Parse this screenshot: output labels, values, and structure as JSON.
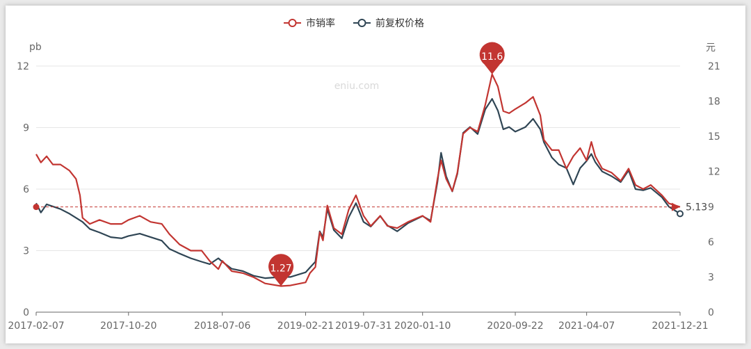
{
  "chart_data": {
    "type": "line",
    "legend": [
      {
        "name": "市销率",
        "color": "#c23531"
      },
      {
        "name": "前复权价格",
        "color": "#2f4554"
      }
    ],
    "legend_position": "top-center",
    "watermark": "eniu.com",
    "y_left": {
      "unit": "pb",
      "min": 0,
      "max": 12,
      "ticks": [
        0,
        3,
        6,
        9,
        12
      ]
    },
    "y_right": {
      "unit": "元",
      "min": 0,
      "max": 21,
      "ticks": [
        0,
        3,
        6,
        9,
        12,
        15,
        18,
        21
      ]
    },
    "x_ticks": [
      "2017-02-07",
      "2017-10-20",
      "2018-07-06",
      "2019-02-21",
      "2019-07-31",
      "2020-01-10",
      "2020-09-22",
      "2021-04-07",
      "2021-12-21"
    ],
    "grid": true,
    "reference_line": {
      "value": 5.13,
      "label": "5.13",
      "color": "#c23531",
      "style": "dashed"
    },
    "markers": [
      {
        "label": "1.27",
        "x": "2018-12-15",
        "value": 1.27,
        "type": "min"
      },
      {
        "label": "11.6",
        "x": "2020-07-20",
        "value": 11.6,
        "type": "max"
      }
    ],
    "series": [
      {
        "name": "市销率",
        "axis": "left",
        "color": "#c23531",
        "points": [
          [
            "2017-02-07",
            7.7
          ],
          [
            "2017-02-20",
            7.3
          ],
          [
            "2017-03-08",
            7.6
          ],
          [
            "2017-03-25",
            7.2
          ],
          [
            "2017-04-15",
            7.2
          ],
          [
            "2017-05-10",
            6.9
          ],
          [
            "2017-05-28",
            6.5
          ],
          [
            "2017-06-08",
            5.7
          ],
          [
            "2017-06-15",
            4.6
          ],
          [
            "2017-07-05",
            4.3
          ],
          [
            "2017-08-01",
            4.5
          ],
          [
            "2017-09-01",
            4.3
          ],
          [
            "2017-10-01",
            4.3
          ],
          [
            "2017-10-20",
            4.5
          ],
          [
            "2017-11-20",
            4.7
          ],
          [
            "2017-12-20",
            4.4
          ],
          [
            "2018-01-20",
            4.3
          ],
          [
            "2018-02-10",
            3.8
          ],
          [
            "2018-03-10",
            3.3
          ],
          [
            "2018-04-10",
            3.0
          ],
          [
            "2018-05-10",
            3.0
          ],
          [
            "2018-06-01",
            2.5
          ],
          [
            "2018-06-25",
            2.1
          ],
          [
            "2018-07-06",
            2.5
          ],
          [
            "2018-08-01",
            2.0
          ],
          [
            "2018-09-01",
            1.9
          ],
          [
            "2018-10-01",
            1.7
          ],
          [
            "2018-11-01",
            1.4
          ],
          [
            "2018-12-15",
            1.27
          ],
          [
            "2019-01-10",
            1.3
          ],
          [
            "2019-02-21",
            1.45
          ],
          [
            "2019-03-05",
            1.9
          ],
          [
            "2019-03-20",
            2.2
          ],
          [
            "2019-04-01",
            3.9
          ],
          [
            "2019-04-10",
            3.5
          ],
          [
            "2019-04-22",
            5.2
          ],
          [
            "2019-05-10",
            4.1
          ],
          [
            "2019-06-01",
            3.8
          ],
          [
            "2019-06-20",
            5.0
          ],
          [
            "2019-07-10",
            5.7
          ],
          [
            "2019-07-31",
            4.7
          ],
          [
            "2019-08-20",
            4.2
          ],
          [
            "2019-09-15",
            4.7
          ],
          [
            "2019-10-05",
            4.2
          ],
          [
            "2019-11-01",
            4.1
          ],
          [
            "2019-12-01",
            4.4
          ],
          [
            "2020-01-10",
            4.7
          ],
          [
            "2020-02-01",
            4.4
          ],
          [
            "2020-02-20",
            6.5
          ],
          [
            "2020-03-01",
            7.4
          ],
          [
            "2020-03-15",
            6.5
          ],
          [
            "2020-04-01",
            5.9
          ],
          [
            "2020-04-15",
            6.8
          ],
          [
            "2020-05-01",
            8.7
          ],
          [
            "2020-05-20",
            9.0
          ],
          [
            "2020-06-10",
            8.8
          ],
          [
            "2020-07-01",
            10.1
          ],
          [
            "2020-07-20",
            11.6
          ],
          [
            "2020-08-05",
            11.0
          ],
          [
            "2020-08-20",
            9.8
          ],
          [
            "2020-09-05",
            9.7
          ],
          [
            "2020-09-22",
            9.9
          ],
          [
            "2020-10-20",
            10.2
          ],
          [
            "2020-11-10",
            10.5
          ],
          [
            "2020-11-30",
            9.6
          ],
          [
            "2020-12-10",
            8.4
          ],
          [
            "2021-01-01",
            7.9
          ],
          [
            "2021-01-20",
            7.9
          ],
          [
            "2021-02-10",
            7.0
          ],
          [
            "2021-03-01",
            7.6
          ],
          [
            "2021-03-20",
            8.0
          ],
          [
            "2021-04-07",
            7.4
          ],
          [
            "2021-04-20",
            8.3
          ],
          [
            "2021-05-01",
            7.6
          ],
          [
            "2021-05-20",
            7.0
          ],
          [
            "2021-06-15",
            6.8
          ],
          [
            "2021-07-10",
            6.4
          ],
          [
            "2021-08-01",
            7.0
          ],
          [
            "2021-08-20",
            6.2
          ],
          [
            "2021-09-10",
            6.0
          ],
          [
            "2021-10-01",
            6.2
          ],
          [
            "2021-11-01",
            5.7
          ],
          [
            "2021-11-20",
            5.3
          ],
          [
            "2021-12-21",
            5.13
          ]
        ]
      },
      {
        "name": "前复权价格",
        "axis": "right",
        "color": "#2f4554",
        "points": [
          [
            "2017-02-07",
            9.3
          ],
          [
            "2017-02-20",
            8.5
          ],
          [
            "2017-03-08",
            9.2
          ],
          [
            "2017-04-15",
            8.8
          ],
          [
            "2017-05-10",
            8.4
          ],
          [
            "2017-06-15",
            7.7
          ],
          [
            "2017-07-05",
            7.1
          ],
          [
            "2017-08-01",
            6.8
          ],
          [
            "2017-09-01",
            6.4
          ],
          [
            "2017-10-01",
            6.3
          ],
          [
            "2017-10-20",
            6.5
          ],
          [
            "2017-11-20",
            6.7
          ],
          [
            "2017-12-20",
            6.4
          ],
          [
            "2018-01-20",
            6.1
          ],
          [
            "2018-02-10",
            5.4
          ],
          [
            "2018-03-10",
            5.0
          ],
          [
            "2018-04-10",
            4.6
          ],
          [
            "2018-05-10",
            4.3
          ],
          [
            "2018-06-01",
            4.1
          ],
          [
            "2018-06-25",
            4.6
          ],
          [
            "2018-07-06",
            4.3
          ],
          [
            "2018-08-01",
            3.7
          ],
          [
            "2018-09-01",
            3.5
          ],
          [
            "2018-10-01",
            3.1
          ],
          [
            "2018-11-01",
            2.9
          ],
          [
            "2018-12-15",
            3.0
          ],
          [
            "2019-01-10",
            3.0
          ],
          [
            "2019-02-21",
            3.4
          ],
          [
            "2019-03-05",
            3.8
          ],
          [
            "2019-03-20",
            4.3
          ],
          [
            "2019-04-01",
            6.9
          ],
          [
            "2019-04-10",
            6.4
          ],
          [
            "2019-04-22",
            8.8
          ],
          [
            "2019-05-10",
            7.0
          ],
          [
            "2019-06-01",
            6.3
          ],
          [
            "2019-06-20",
            8.1
          ],
          [
            "2019-07-10",
            9.3
          ],
          [
            "2019-07-31",
            7.7
          ],
          [
            "2019-08-20",
            7.3
          ],
          [
            "2019-09-15",
            8.2
          ],
          [
            "2019-10-05",
            7.4
          ],
          [
            "2019-11-01",
            6.9
          ],
          [
            "2019-12-01",
            7.6
          ],
          [
            "2020-01-10",
            8.2
          ],
          [
            "2020-02-01",
            7.8
          ],
          [
            "2020-02-20",
            11.1
          ],
          [
            "2020-03-01",
            13.6
          ],
          [
            "2020-03-15",
            11.6
          ],
          [
            "2020-04-01",
            10.3
          ],
          [
            "2020-04-15",
            11.8
          ],
          [
            "2020-05-01",
            15.3
          ],
          [
            "2020-05-20",
            15.8
          ],
          [
            "2020-06-10",
            15.2
          ],
          [
            "2020-07-01",
            17.3
          ],
          [
            "2020-07-20",
            18.2
          ],
          [
            "2020-08-05",
            17.2
          ],
          [
            "2020-08-20",
            15.6
          ],
          [
            "2020-09-05",
            15.8
          ],
          [
            "2020-09-22",
            15.4
          ],
          [
            "2020-10-20",
            15.8
          ],
          [
            "2020-11-10",
            16.5
          ],
          [
            "2020-11-30",
            15.6
          ],
          [
            "2020-12-10",
            14.5
          ],
          [
            "2021-01-01",
            13.2
          ],
          [
            "2021-01-20",
            12.6
          ],
          [
            "2021-02-10",
            12.3
          ],
          [
            "2021-03-01",
            10.9
          ],
          [
            "2021-03-20",
            12.3
          ],
          [
            "2021-04-07",
            12.9
          ],
          [
            "2021-04-20",
            13.5
          ],
          [
            "2021-05-01",
            12.8
          ],
          [
            "2021-05-20",
            12.0
          ],
          [
            "2021-06-15",
            11.6
          ],
          [
            "2021-07-10",
            11.1
          ],
          [
            "2021-08-01",
            12.1
          ],
          [
            "2021-08-20",
            10.5
          ],
          [
            "2021-09-10",
            10.4
          ],
          [
            "2021-10-01",
            10.6
          ],
          [
            "2021-11-01",
            9.8
          ],
          [
            "2021-11-20",
            9.0
          ],
          [
            "2021-12-21",
            8.4
          ]
        ]
      }
    ]
  }
}
